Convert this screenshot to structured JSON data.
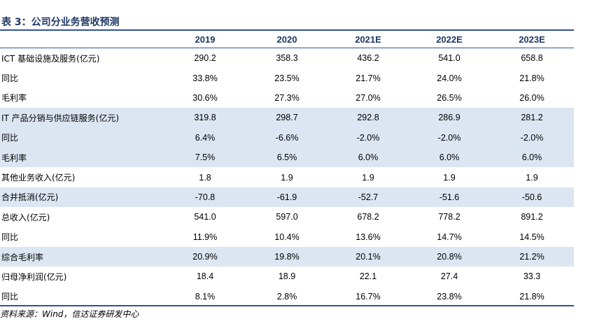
{
  "caption": "表 3：公司分业务营收预测",
  "table": {
    "columns": [
      "",
      "2019",
      "2020",
      "2021E",
      "2022E",
      "2023E"
    ],
    "rows": [
      {
        "label": "ICT 基础设施及服务(亿元)",
        "values": [
          "290.2",
          "358.3",
          "436.2",
          "541.0",
          "658.8"
        ],
        "shaded": false
      },
      {
        "label": "同比",
        "values": [
          "33.8%",
          "23.5%",
          "21.7%",
          "24.0%",
          "21.8%"
        ],
        "shaded": false
      },
      {
        "label": "毛利率",
        "values": [
          "30.6%",
          "27.3%",
          "27.0%",
          "26.5%",
          "26.0%"
        ],
        "shaded": false
      },
      {
        "label": "IT 产品分销与供应链服务(亿元)",
        "values": [
          "319.8",
          "298.7",
          "292.8",
          "286.9",
          "281.2"
        ],
        "shaded": true
      },
      {
        "label": "同比",
        "values": [
          "6.4%",
          "-6.6%",
          "-2.0%",
          "-2.0%",
          "-2.0%"
        ],
        "shaded": true
      },
      {
        "label": "毛利率",
        "values": [
          "7.5%",
          "6.5%",
          "6.0%",
          "6.0%",
          "6.0%"
        ],
        "shaded": true
      },
      {
        "label": "其他业务收入(亿元)",
        "values": [
          "1.8",
          "1.9",
          "1.9",
          "1.9",
          "1.9"
        ],
        "shaded": false
      },
      {
        "label": "合并抵消(亿元)",
        "values": [
          "-70.8",
          "-61.9",
          "-52.7",
          "-51.6",
          "-50.6"
        ],
        "shaded": true
      },
      {
        "label": "总收入(亿元)",
        "values": [
          "541.0",
          "597.0",
          "678.2",
          "778.2",
          "891.2"
        ],
        "shaded": false
      },
      {
        "label": "同比",
        "values": [
          "11.9%",
          "10.4%",
          "13.6%",
          "14.7%",
          "14.5%"
        ],
        "shaded": false
      },
      {
        "label": "综合毛利率",
        "values": [
          "20.9%",
          "19.8%",
          "20.1%",
          "20.8%",
          "21.2%"
        ],
        "shaded": true
      },
      {
        "label": "归母净利润(亿元)",
        "values": [
          "18.4",
          "18.9",
          "22.1",
          "27.4",
          "33.3"
        ],
        "shaded": false
      },
      {
        "label": "同比",
        "values": [
          "8.1%",
          "2.8%",
          "16.7%",
          "23.8%",
          "21.8%"
        ],
        "shaded": false
      }
    ]
  },
  "source": "资料来源：Wind，信达证券研发中心",
  "colors": {
    "header_text": "#1F3864",
    "rule": "#2E5496",
    "shade": "#DCE6F2"
  }
}
